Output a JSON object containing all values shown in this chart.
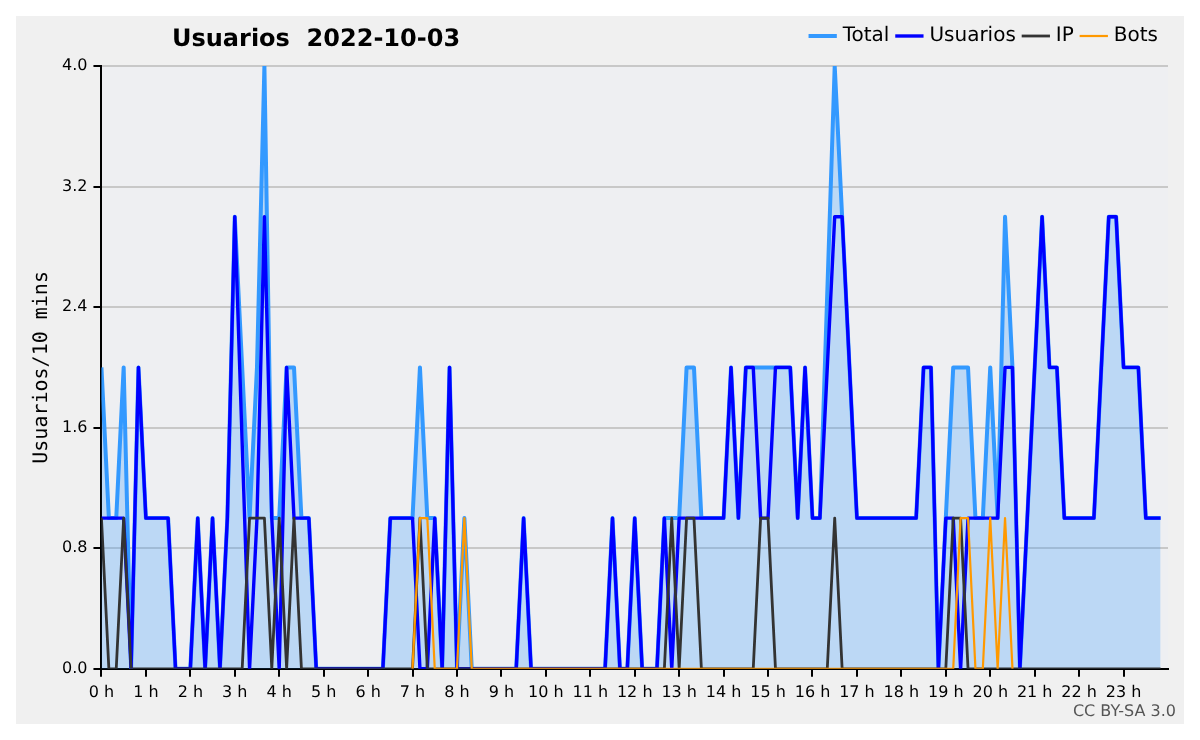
{
  "chart_data": {
    "type": "line",
    "title": "Usuarios  2022-10-03",
    "ylabel": "Usuarios/10 mins",
    "xlim": [
      0,
      24
    ],
    "ylim": [
      0,
      4
    ],
    "xticks": [
      {
        "value": 0,
        "label": "0 h"
      },
      {
        "value": 1,
        "label": "1 h"
      },
      {
        "value": 2,
        "label": "2 h"
      },
      {
        "value": 3,
        "label": "3 h"
      },
      {
        "value": 4,
        "label": "4 h"
      },
      {
        "value": 5,
        "label": "5 h"
      },
      {
        "value": 6,
        "label": "6 h"
      },
      {
        "value": 7,
        "label": "7 h"
      },
      {
        "value": 8,
        "label": "8 h"
      },
      {
        "value": 9,
        "label": "9 h"
      },
      {
        "value": 10,
        "label": "10 h"
      },
      {
        "value": 11,
        "label": "11 h"
      },
      {
        "value": 12,
        "label": "12 h"
      },
      {
        "value": 13,
        "label": "13 h"
      },
      {
        "value": 14,
        "label": "14 h"
      },
      {
        "value": 15,
        "label": "15 h"
      },
      {
        "value": 16,
        "label": "16 h"
      },
      {
        "value": 17,
        "label": "17 h"
      },
      {
        "value": 18,
        "label": "18 h"
      },
      {
        "value": 19,
        "label": "19 h"
      },
      {
        "value": 20,
        "label": "20 h"
      },
      {
        "value": 21,
        "label": "21 h"
      },
      {
        "value": 22,
        "label": "22 h"
      },
      {
        "value": 23,
        "label": "23 h"
      }
    ],
    "yticks": [
      {
        "value": 0,
        "label": "0.0"
      },
      {
        "value": 0.8,
        "label": "0.8"
      },
      {
        "value": 1.6,
        "label": "1.6"
      },
      {
        "value": 2.4,
        "label": "2.4"
      },
      {
        "value": 3.2,
        "label": "3.2"
      },
      {
        "value": 4,
        "label": "4.0"
      }
    ],
    "grid": "y",
    "legend": "top right",
    "marker": "none",
    "line_style": "solid",
    "annotations": [
      "CC BY-SA 3.0"
    ],
    "series": [
      {
        "name": "Total",
        "type": "area",
        "color": "#3399ff",
        "x": [
          0,
          0.167,
          0.333,
          0.5,
          0.667,
          0.833,
          1,
          1.5,
          1.667,
          2,
          2.167,
          2.333,
          2.5,
          2.667,
          2.833,
          3,
          3.333,
          3.5,
          3.667,
          3.833,
          4,
          4.167,
          4.333,
          4.5,
          4.667,
          4.833,
          6.333,
          6.5,
          7,
          7.167,
          7.333,
          7.5,
          7.667,
          7.833,
          8,
          8.167,
          8.333,
          9.333,
          9.5,
          9.667,
          11.333,
          11.5,
          11.667,
          11.833,
          12,
          12.167,
          12.5,
          12.667,
          12.833,
          13,
          13.167,
          13.333,
          13.5,
          14,
          14.167,
          14.333,
          14.5,
          15.5,
          15.667,
          15.833,
          16,
          16.167,
          16.5,
          16.667,
          17,
          18.333,
          18.5,
          18.667,
          18.833,
          19,
          19.167,
          19.5,
          19.667,
          19.833,
          20,
          20.167,
          20.333,
          20.5,
          20.667,
          21.167,
          21.333,
          21.5,
          21.667,
          22.333,
          22.667,
          22.833,
          23,
          23.333,
          23.5,
          23.833
        ],
        "values": [
          2,
          1,
          1,
          2,
          0,
          2,
          1,
          1,
          0,
          0,
          1,
          0,
          1,
          0,
          1,
          3,
          1,
          2,
          4,
          1,
          1,
          2,
          2,
          1,
          1,
          0,
          0,
          1,
          1,
          2,
          1,
          1,
          0,
          2,
          0,
          1,
          0,
          0,
          1,
          0,
          0,
          1,
          0,
          0,
          1,
          0,
          0,
          1,
          1,
          1,
          2,
          2,
          1,
          1,
          2,
          1,
          2,
          2,
          1,
          2,
          1,
          1,
          4,
          3,
          1,
          1,
          2,
          2,
          0,
          1,
          2,
          2,
          1,
          1,
          2,
          1,
          3,
          2,
          0,
          3,
          2,
          2,
          1,
          1,
          3,
          3,
          2,
          2,
          1,
          1
        ]
      },
      {
        "name": "Usuarios",
        "type": "line",
        "color": "#0000ff",
        "x": [
          0,
          0.5,
          0.667,
          0.833,
          1,
          1.5,
          1.667,
          2,
          2.167,
          2.333,
          2.5,
          2.667,
          2.833,
          3,
          3.333,
          3.5,
          3.667,
          3.833,
          4,
          4.167,
          4.333,
          4.667,
          4.833,
          6.333,
          6.5,
          7,
          7.167,
          7.333,
          7.5,
          7.667,
          7.833,
          8,
          9.333,
          9.5,
          9.667,
          11.333,
          11.5,
          11.667,
          11.833,
          12,
          12.167,
          12.5,
          12.667,
          12.833,
          13,
          14,
          14.167,
          14.333,
          14.5,
          14.667,
          14.833,
          15,
          15.167,
          15.5,
          15.667,
          15.833,
          16,
          16.167,
          16.5,
          16.667,
          17,
          18.333,
          18.5,
          18.667,
          18.833,
          19,
          19.167,
          19.333,
          19.5,
          20.167,
          20.333,
          20.5,
          20.667,
          21.167,
          21.333,
          21.5,
          21.667,
          22.333,
          22.667,
          22.833,
          23,
          23.333,
          23.5,
          23.833
        ],
        "values": [
          1,
          1,
          0,
          2,
          1,
          1,
          0,
          0,
          1,
          0,
          1,
          0,
          1,
          3,
          0,
          1,
          3,
          1,
          0,
          2,
          1,
          1,
          0,
          0,
          1,
          1,
          0,
          0,
          1,
          0,
          2,
          0,
          0,
          1,
          0,
          0,
          1,
          0,
          0,
          1,
          0,
          0,
          1,
          0,
          1,
          1,
          2,
          1,
          2,
          2,
          1,
          1,
          2,
          2,
          1,
          2,
          1,
          1,
          3,
          3,
          1,
          1,
          2,
          2,
          0,
          1,
          1,
          0,
          1,
          1,
          2,
          2,
          0,
          3,
          2,
          2,
          1,
          1,
          3,
          3,
          2,
          2,
          1,
          1
        ]
      },
      {
        "name": "IP",
        "type": "line",
        "color": "#333333",
        "x": [
          0,
          0.167,
          0.333,
          0.5,
          0.667,
          3.167,
          3.333,
          3.667,
          3.833,
          4,
          4.167,
          4.333,
          4.5,
          7,
          7.167,
          7.333,
          12.667,
          12.833,
          13,
          13.167,
          13.333,
          13.5,
          14.667,
          14.833,
          15,
          15.167,
          16.333,
          16.5,
          16.667,
          19,
          19.167,
          19.333,
          19.5,
          23.833
        ],
        "values": [
          1,
          0,
          0,
          1,
          0,
          0,
          1,
          1,
          0,
          1,
          0,
          1,
          0,
          0,
          1,
          0,
          0,
          1,
          0,
          1,
          1,
          0,
          0,
          1,
          1,
          0,
          0,
          1,
          0,
          0,
          1,
          1,
          0,
          0
        ]
      },
      {
        "name": "Bots",
        "type": "line",
        "color": "#ff9900",
        "x": [
          7,
          7.167,
          7.333,
          7.5,
          8,
          8.167,
          8.333,
          19.167,
          19.333,
          19.5,
          19.667,
          19.833,
          20,
          20.167,
          20.333,
          20.5
        ],
        "values": [
          0,
          1,
          1,
          0,
          0,
          1,
          0,
          0,
          1,
          1,
          0,
          0,
          1,
          0,
          1,
          0
        ]
      }
    ]
  }
}
